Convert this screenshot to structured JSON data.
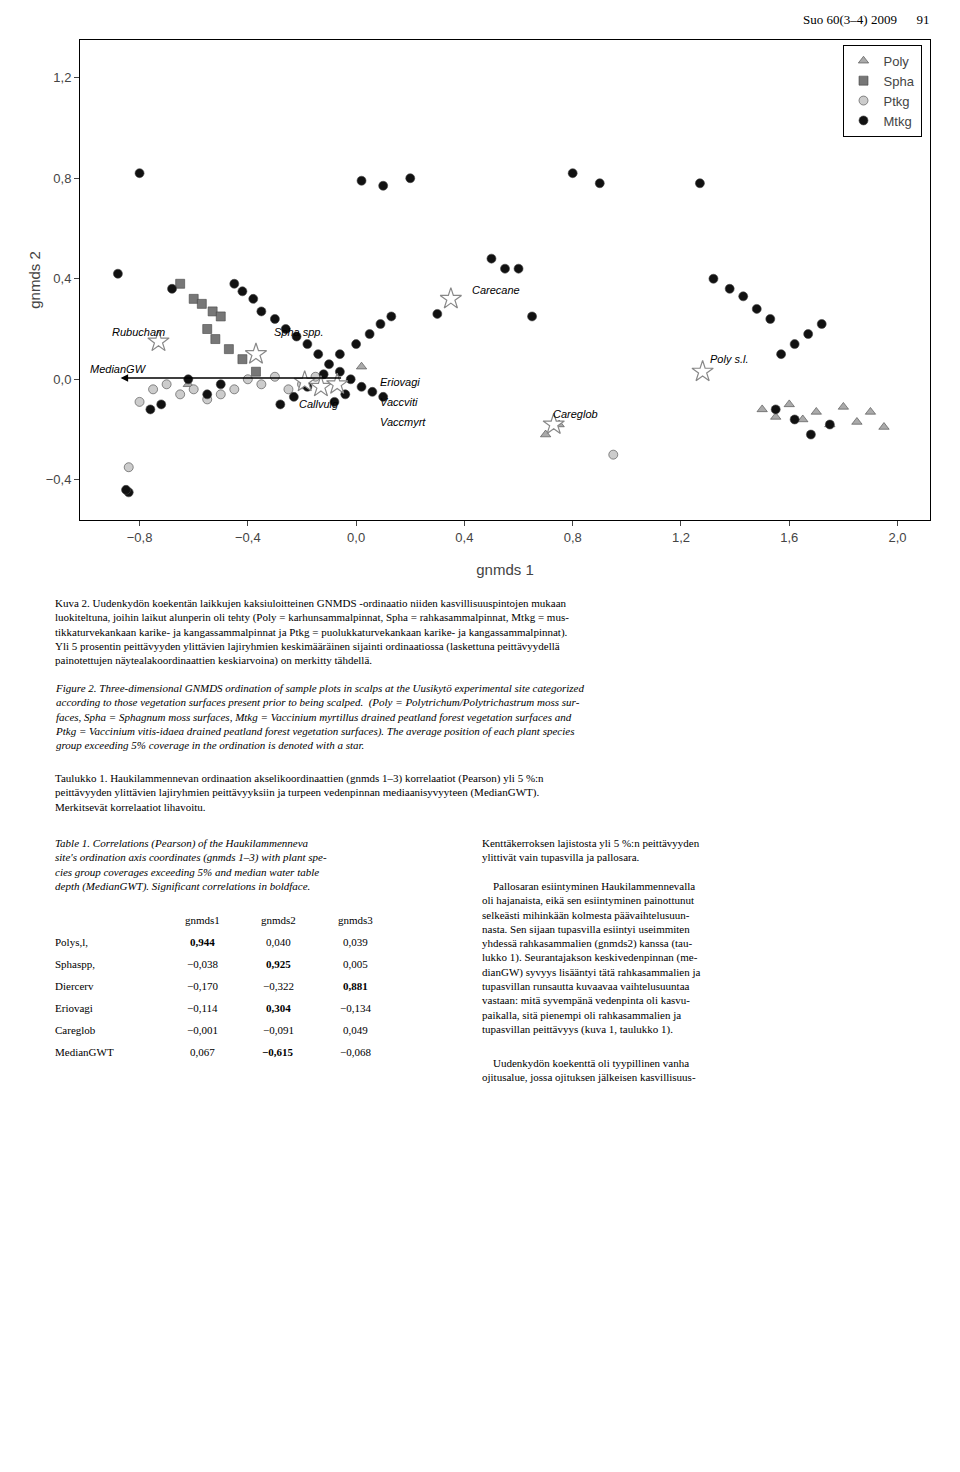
{
  "chart_data": {
    "type": "scatter",
    "xlabel": "gnmds 1",
    "ylabel": "gnmds 2",
    "xlim": [
      -1.02,
      2.12
    ],
    "ylim": [
      -0.56,
      1.35
    ],
    "xticks": [
      {
        "value": -0.8,
        "label": "−0,8"
      },
      {
        "value": -0.4,
        "label": "−0,4"
      },
      {
        "value": 0.0,
        "label": "0,0"
      },
      {
        "value": 0.4,
        "label": "0,4"
      },
      {
        "value": 0.8,
        "label": "0,8"
      },
      {
        "value": 1.2,
        "label": "1,2"
      },
      {
        "value": 1.6,
        "label": "1,6"
      },
      {
        "value": 2.0,
        "label": "2,0"
      }
    ],
    "yticks": [
      {
        "value": -0.4,
        "label": "−0,4"
      },
      {
        "value": 0.0,
        "label": "0,0"
      },
      {
        "value": 0.4,
        "label": "0,4"
      },
      {
        "value": 0.8,
        "label": "0,8"
      },
      {
        "value": 1.2,
        "label": "1,2"
      }
    ],
    "grid": false,
    "legend": "upper right",
    "series": [
      {
        "name": "Poly",
        "color": "#aaaaaa",
        "marker": "triangle-up",
        "x": [
          -0.62,
          0.02,
          0.75,
          0.7,
          1.5,
          1.55,
          1.6,
          1.65,
          1.7,
          1.75,
          1.8,
          1.85,
          1.9,
          1.95
        ],
        "y": [
          -0.02,
          0.05,
          -0.18,
          -0.22,
          -0.12,
          -0.15,
          -0.1,
          -0.16,
          -0.13,
          -0.18,
          -0.11,
          -0.17,
          -0.13,
          -0.19
        ]
      },
      {
        "name": "Spha",
        "color": "#777777",
        "marker": "square",
        "x": [
          -0.65,
          -0.6,
          -0.57,
          -0.53,
          -0.5,
          -0.55,
          -0.52,
          -0.47,
          -0.42,
          -0.37
        ],
        "y": [
          0.38,
          0.32,
          0.3,
          0.27,
          0.25,
          0.2,
          0.16,
          0.12,
          0.08,
          0.03
        ]
      },
      {
        "name": "Ptkg",
        "color": "#cccccc",
        "marker": "circle",
        "x": [
          -0.84,
          -0.8,
          -0.75,
          -0.7,
          -0.65,
          -0.6,
          -0.55,
          -0.5,
          -0.45,
          -0.4,
          -0.35,
          -0.3,
          -0.25,
          -0.2,
          -0.15,
          0.95
        ],
        "y": [
          -0.35,
          -0.09,
          -0.04,
          -0.02,
          -0.06,
          -0.04,
          -0.08,
          -0.06,
          -0.04,
          0.0,
          -0.02,
          0.01,
          -0.04,
          -0.02,
          0.01,
          -0.3
        ]
      },
      {
        "name": "Mtkg",
        "color": "#111111",
        "marker": "circle",
        "x": [
          -0.88,
          -0.84,
          -0.8,
          -0.76,
          -0.72,
          -0.68,
          -0.62,
          -0.55,
          -0.5,
          -0.45,
          -0.42,
          -0.38,
          -0.35,
          -0.3,
          -0.26,
          -0.22,
          -0.18,
          -0.14,
          -0.1,
          -0.06,
          -0.02,
          0.02,
          0.06,
          0.1,
          -0.04,
          -0.08,
          -0.28,
          -0.23,
          -0.18,
          -0.12,
          -0.06,
          0.0,
          0.05,
          0.09,
          0.13,
          0.02,
          0.1,
          0.2,
          0.5,
          0.55,
          0.3,
          0.6,
          0.65,
          0.8,
          0.9,
          1.27,
          1.32,
          1.38,
          1.43,
          1.48,
          1.53,
          1.57,
          1.62,
          1.67,
          1.72,
          1.55,
          1.62,
          1.68,
          1.75,
          -0.85
        ],
        "y": [
          0.42,
          -0.45,
          0.82,
          -0.12,
          -0.1,
          0.36,
          0.0,
          -0.06,
          -0.02,
          0.38,
          0.35,
          0.32,
          0.27,
          0.24,
          0.2,
          0.17,
          0.14,
          0.1,
          0.06,
          0.03,
          0.0,
          -0.03,
          -0.05,
          -0.07,
          -0.06,
          -0.09,
          -0.1,
          -0.07,
          -0.03,
          0.02,
          0.1,
          0.14,
          0.18,
          0.22,
          0.25,
          0.79,
          0.77,
          0.8,
          0.48,
          0.44,
          0.26,
          0.44,
          0.25,
          0.82,
          0.78,
          0.78,
          0.4,
          0.36,
          0.33,
          0.28,
          0.24,
          0.1,
          0.14,
          0.18,
          0.22,
          -0.12,
          -0.16,
          -0.22,
          -0.18,
          -0.44
        ]
      }
    ],
    "stars": {
      "marker": "star",
      "x": [
        -0.73,
        -0.37,
        -0.19,
        -0.13,
        -0.07,
        0.35,
        0.73,
        1.28
      ],
      "y": [
        0.15,
        0.1,
        -0.01,
        -0.03,
        -0.02,
        0.32,
        -0.18,
        0.03
      ]
    },
    "annotations": [
      {
        "text": "Rubucham",
        "x": -0.7,
        "y": 0.19,
        "anchor": "right"
      },
      {
        "text": "Spha spp.",
        "x": -0.31,
        "y": 0.19,
        "anchor": "left"
      },
      {
        "text": "Eriovagi",
        "x": 0.08,
        "y": -0.01,
        "anchor": "left"
      },
      {
        "text": "Vaccviti",
        "x": 0.08,
        "y": -0.09,
        "anchor": "left"
      },
      {
        "text": "Vaccmyrt",
        "x": 0.08,
        "y": -0.17,
        "anchor": "left"
      },
      {
        "text": "Callvulg",
        "x": -0.22,
        "y": -0.1,
        "anchor": "left"
      },
      {
        "text": "MedianGW",
        "x": -0.99,
        "y": 0.04,
        "anchor": "left"
      },
      {
        "text": "Carecane",
        "x": 0.42,
        "y": 0.355,
        "anchor": "left"
      },
      {
        "text": "Careglob",
        "x": 0.72,
        "y": -0.14,
        "anchor": "left"
      },
      {
        "text": "Poly s.l.",
        "x": 1.3,
        "y": 0.08,
        "anchor": "left"
      }
    ],
    "arrow": {
      "from": [
        -0.05,
        0.005
      ],
      "to": [
        -0.87,
        0.005
      ]
    },
    "header": "Suo 60(3–4) 2009      91",
    "caption_fi": "Kuva 2. Uudenkydön koekentän laikkujen kaksiuloitteinen GNMDS -ordinaatio niiden kasvillisuuspintojen mukaan\nluokiteltuna, joihin laikut alunperin oli tehty (Poly = karhunsammalpinnat, Spha = rahkasammalpinnat, Mtkg = mus-\ntikkaturvekankaan karike- ja kangassammalpinnat ja Ptkg = puolukkaturvekankaan karike- ja kangassammalpinnat).\nYli 5 prosentin peittävyyden ylittävien lajiryhmien keskimääräinen sijainti ordinaatiossa (laskettuna peittävyydellä\npainotettujen näytealakoordinaattien keskiarvoina) on merkitty tähdellä.",
    "caption_en": "Figure 2. Three-dimensional GNMDS ordination of sample plots in scalps at the Uusikytö experimental site categorized\naccording to those vegetation surfaces present prior to being scalped.  (Poly = Polytrichum/Polytrichastrum moss sur-\nfaces, Spha = Sphagnum moss surfaces, Mtkg = Vaccinium myrtillus drained peatland forest vegetation surfaces and\nPtkg = Vaccinium vitis-idaea drained peatland forest vegetation surfaces). The average position of each plant species\ngroup exceeding 5% coverage in the ordination is denoted with a star.",
    "table_caption_fi": "Taulukko 1. Haukilammennevan ordinaation akselikoordinaattien (gnmds 1–3) korrelaatiot (Pearson) yli 5 %:n\npeittävyyden ylittävien lajiryhmien peittävyyksiin ja turpeen vedenpinnan mediaanisyvyyteen (MedianGWT).\nMerkitsevät korrelaatiot lihavoitu.",
    "table_caption_en": "Table 1. Correlations (Pearson) of the Haukilammenneva\nsite's ordination axis coordinates (gnmds 1–3) with plant spe-\ncies group coverages exceeding 5% and median water table\ndepth (MedianGWT). Significant correlations in boldface.",
    "table": {
      "columns": [
        "gnmds1",
        "gnmds2",
        "gnmds3"
      ],
      "rows": [
        {
          "name": "Polys,l,",
          "values": [
            0.944,
            0.04,
            0.039
          ],
          "value_labels": [
            "0,944",
            "0,040",
            "0,039"
          ],
          "bold": [
            true,
            false,
            false
          ]
        },
        {
          "name": "Sphaspp,",
          "values": [
            -0.038,
            0.925,
            0.005
          ],
          "value_labels": [
            "−0,038",
            "0,925",
            "0,005"
          ],
          "bold": [
            false,
            true,
            false
          ]
        },
        {
          "name": "Diercerv",
          "values": [
            -0.17,
            -0.322,
            0.881
          ],
          "value_labels": [
            "−0,170",
            "−0,322",
            "0,881"
          ],
          "bold": [
            false,
            false,
            true
          ]
        },
        {
          "name": "Eriovagi",
          "values": [
            -0.114,
            0.304,
            -0.134
          ],
          "value_labels": [
            "−0,114",
            "0,304",
            "−0,134"
          ],
          "bold": [
            false,
            true,
            false
          ]
        },
        {
          "name": "Careglob",
          "values": [
            -0.001,
            -0.091,
            0.049
          ],
          "value_labels": [
            "−0,001",
            "−0,091",
            "0,049"
          ],
          "bold": [
            false,
            false,
            false
          ]
        },
        {
          "name": "MedianGWT",
          "values": [
            0.067,
            -0.615,
            -0.068
          ],
          "value_labels": [
            "0,067",
            "−0,615",
            "−0,068"
          ],
          "bold": [
            false,
            true,
            false
          ]
        }
      ]
    },
    "body_text": [
      "Kenttäkerroksen lajistosta yli 5 %:n peittävyyden\nylittivät vain tupasvilla ja pallosara.\n\n    Pallosaran esiintyminen Haukilammennevalla\noli hajanaista, eikä sen esiintyminen painottunut\nselkeästi mihinkään kolmesta päävaihtelusuun-\nnasta. Sen sijaan tupasvilla esiintyi useimmiten\nyhdessä rahkasammalien (gnmds2) kanssa (tau-\nlukko 1). Seurantajakson keskivedenpinnan (me-\ndianGW) syvyys lisääntyi tätä rahkasammalien ja\ntupasvillan runsautta kuvaavaa vaihtelusuuntaa\nvastaan: mitä syvempänä vedenpinta oli kasvu-\npaikalla, sitä pienempi oli rahkasammalien ja\ntupasvillan peittävyys (kuva 1, taulukko 1).",
      "    Uudenkydön koekenttä oli tyypillinen vanha\nojitusalue, jossa ojituksen jälkeisen kasvillisuus-"
    ]
  }
}
